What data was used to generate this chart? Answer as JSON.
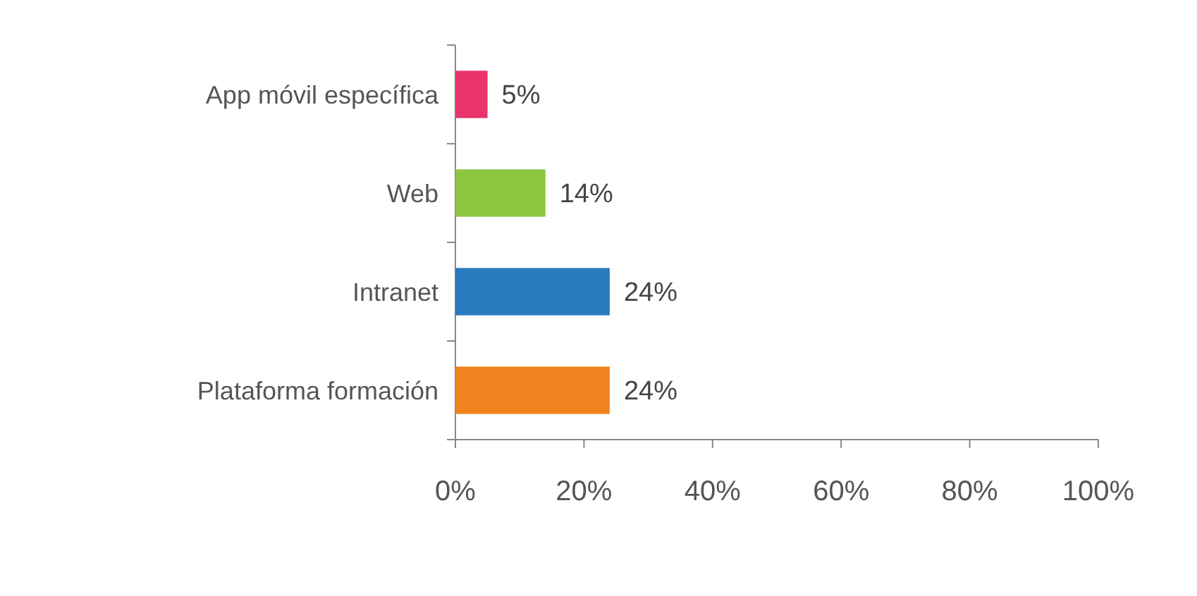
{
  "chart_data": {
    "type": "bar",
    "orientation": "horizontal",
    "categories": [
      "App móvil específica",
      "Web",
      "Intranet",
      "Plataforma formación"
    ],
    "values": [
      5,
      14,
      24,
      24
    ],
    "colors": [
      "#e8336b",
      "#8cc63f",
      "#2a7abf",
      "#f0831e"
    ],
    "value_labels": [
      "5%",
      "14%",
      "24%",
      "24%"
    ],
    "xlim": [
      0,
      100
    ],
    "xticks": [
      {
        "value": 0,
        "label": "0%"
      },
      {
        "value": 20,
        "label": "20%"
      },
      {
        "value": 40,
        "label": "40%"
      },
      {
        "value": 60,
        "label": "60%"
      },
      {
        "value": 80,
        "label": "80%"
      },
      {
        "value": 100,
        "label": "100%"
      }
    ],
    "grid": false
  }
}
